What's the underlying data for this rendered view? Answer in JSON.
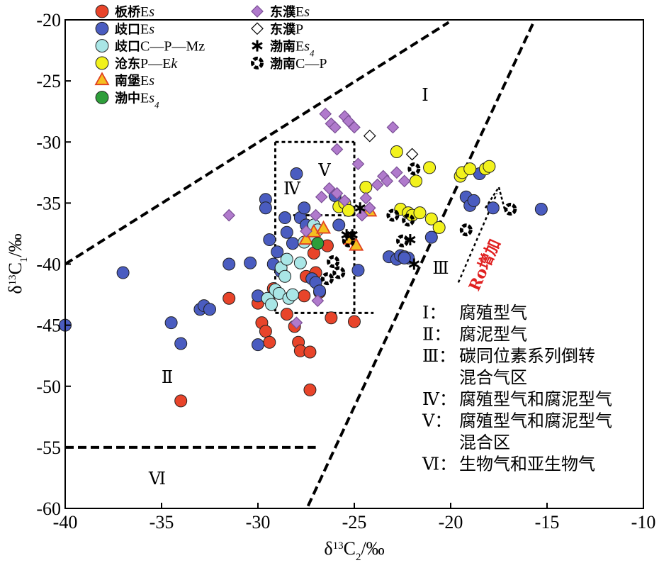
{
  "chart_data": {
    "type": "scatter",
    "xlabel": "δ13C2/‰",
    "ylabel": "δ13C1/‰",
    "xlim": [
      -40,
      -10
    ],
    "ylim": [
      -60,
      -20
    ],
    "x_ticks": [
      "-40",
      "-35",
      "-30",
      "-25",
      "-20",
      "-15",
      "-10"
    ],
    "y_ticks": [
      "-20",
      "-25",
      "-30",
      "-35",
      "-40",
      "-45",
      "-50",
      "-55",
      "-60"
    ],
    "grid": false,
    "legend_position": "top-left",
    "zone_labels": [
      "Ⅰ",
      "Ⅱ",
      "Ⅲ",
      "Ⅳ",
      "Ⅴ",
      "Ⅵ"
    ],
    "annotation_ro": "Ro增加",
    "region_legend": [
      {
        "num": "Ⅰ：",
        "text": "腐殖型气"
      },
      {
        "num": "Ⅱ：",
        "text": "腐泥型气"
      },
      {
        "num": "Ⅲ：",
        "text": "碳同位素系列倒转"
      },
      {
        "num": "",
        "text": "混合气区"
      },
      {
        "num": "Ⅳ：",
        "text": "腐殖型气和腐泥型气"
      },
      {
        "num": "Ⅴ：",
        "text": "腐殖型气和腐泥型气"
      },
      {
        "num": "",
        "text": "混合区"
      },
      {
        "num": "Ⅵ：",
        "text": "生物气和亚生物气"
      }
    ],
    "series": [
      {
        "name": "板桥Es",
        "marker": "circle",
        "color": "#e8442a",
        "x": [
          -31.5,
          -30,
          -29.8,
          -29.6,
          -29.4,
          -29.2,
          -28.5,
          -28.1,
          -27.9,
          -27.8,
          -27.6,
          -27.5,
          -27.3,
          -27.3,
          -27.1,
          -27,
          -26.8,
          -26.4,
          -26.2,
          -25,
          -34
        ],
        "y": [
          -42.8,
          -43.2,
          -44.8,
          -45.5,
          -46.4,
          -42,
          -44.1,
          -45.1,
          -46.4,
          -47.1,
          -42.6,
          -41,
          -50.3,
          -47.2,
          -39.1,
          -40.7,
          -42.3,
          -38.5,
          -44.4,
          -44.7,
          -51.2
        ]
      },
      {
        "name": "歧口Es",
        "marker": "circle",
        "color": "#4a5cc0",
        "x": [
          -40,
          -37,
          -34.5,
          -34,
          -33,
          -32.8,
          -32.5,
          -31.5,
          -30.4,
          -30,
          -30,
          -29.6,
          -29.6,
          -29.4,
          -29.2,
          -29,
          -28.8,
          -28.6,
          -28.5,
          -28.2,
          -28,
          -27.8,
          -27.6,
          -27.5,
          -27.2,
          -27,
          -26.8,
          -26,
          -25.8,
          -25.5,
          -24.8,
          -23.2,
          -22.8,
          -22.6,
          -22.4,
          -22.2,
          -22.4,
          -21,
          -19.2,
          -19,
          -18.8,
          -18.5,
          -17.8,
          -15.3
        ],
        "y": [
          -45,
          -40.7,
          -44.8,
          -46.5,
          -43.7,
          -43.4,
          -43.7,
          -40,
          -39.9,
          -42.6,
          -46.6,
          -34.7,
          -35.4,
          -38,
          -40,
          -39,
          -40.6,
          -36.2,
          -37.4,
          -38.3,
          -32.6,
          -36.2,
          -35.4,
          -36.8,
          -41.2,
          -41.5,
          -42.2,
          -34.4,
          -36.8,
          -35.2,
          -40.5,
          -39.4,
          -39.6,
          -39.3,
          -39.4,
          -39.5,
          -39.5,
          -37.8,
          -34.5,
          -35.2,
          -34.8,
          -32.6,
          -35.4,
          -35.5
        ]
      },
      {
        "name": "歧口C—P—Mz",
        "marker": "circle",
        "color": "#a9e6e6",
        "x": [
          -29.5,
          -29.3,
          -29.1,
          -28.9,
          -28.8,
          -28.6,
          -28.5,
          -28.4,
          -28.2,
          -27.8,
          -27.6,
          -27.3,
          -27.1,
          -26.9
        ],
        "y": [
          -42.8,
          -43.3,
          -42.1,
          -42.4,
          -40.3,
          -41,
          -39.6,
          -42.8,
          -42.5,
          -39.9,
          -38.2,
          -37.8,
          -36.8,
          -37.2
        ]
      },
      {
        "name": "沧东P—Ek",
        "marker": "circle",
        "color": "#f2f21c",
        "x": [
          -25.8,
          -25.5,
          -25.3,
          -24.4,
          -22.8,
          -22.6,
          -22.2,
          -22,
          -21.8,
          -21.6,
          -21.1,
          -21,
          -20.6,
          -19.5,
          -19.4,
          -19,
          -18.2,
          -18
        ],
        "y": [
          -35.3,
          -35,
          -35.6,
          -33.7,
          -30.8,
          -35.5,
          -35.8,
          -36,
          -33.2,
          -35.8,
          -32.1,
          -36.3,
          -37,
          -32.8,
          -32.5,
          -32.2,
          -32.2,
          -32
        ]
      },
      {
        "name": "南堡Es",
        "marker": "triangle",
        "color": "#f5c020",
        "stroke": "#e04020",
        "x": [
          -27.5,
          -27.1,
          -26.6,
          -25.2,
          -24.9,
          -24.2
        ],
        "y": [
          -38,
          -37.4,
          -37.1,
          -38,
          -38.5,
          -35.7
        ]
      },
      {
        "name": "渤中Es4",
        "marker": "circle",
        "color": "#2e9e3a",
        "x": [
          -26.9
        ],
        "y": [
          -38.3
        ]
      },
      {
        "name": "东濮Es",
        "marker": "diamond",
        "color": "#b07acc",
        "x": [
          -26.5,
          -26.2,
          -26,
          -25.9,
          -25.5,
          -25.3,
          -25,
          -24.8,
          -24.2,
          -23.5,
          -23,
          -22.8,
          -26.7,
          -26.3,
          -24.4,
          -27,
          -27.5,
          -23.8,
          -23.3,
          -22.4,
          -31.5,
          -28,
          -26.9,
          -25.9,
          -25.5,
          -24.6
        ],
        "y": [
          -27.7,
          -28.5,
          -28.8,
          -30.6,
          -27.9,
          -28.3,
          -28.8,
          -31.8,
          -35.4,
          -32.8,
          -28.8,
          -32.5,
          -34.5,
          -33.8,
          -34.6,
          -36,
          -37.3,
          -33.5,
          -33.2,
          -33.2,
          -36,
          -44.8,
          -43,
          -34.2,
          -34.8,
          -36
        ]
      },
      {
        "name": "东濮P",
        "marker": "diamond-open",
        "color": "#ffffff",
        "x": [
          -24.2,
          -22
        ],
        "y": [
          -29.5,
          -31
        ]
      },
      {
        "name": "渤南Es4",
        "marker": "asterisk",
        "color": "#000000",
        "x": [
          -25.4,
          -25.1,
          -24.7,
          -22.1,
          -21.9
        ],
        "y": [
          -37.6,
          -37.6,
          -35.4,
          -38,
          -40
        ]
      },
      {
        "name": "渤南C—P",
        "marker": "ring",
        "color": "#000000",
        "x": [
          -26.4,
          -26.1,
          -25.8,
          -25.3,
          -23,
          -22.5,
          -22.2,
          -21.9,
          -19.2,
          -16.9
        ],
        "y": [
          -41.2,
          -39.8,
          -40.7,
          -38.1,
          -36,
          -38.1,
          -36.4,
          -32.2,
          -37.2,
          -35.5
        ]
      }
    ],
    "legend": [
      {
        "label": "板桥",
        "sym": "E",
        "italic": "s",
        "sub": ""
      },
      {
        "label": "歧口",
        "sym": "E",
        "italic": "s",
        "sub": ""
      },
      {
        "label": "歧口",
        "sym": "C—P—Mz",
        "italic": "",
        "sub": ""
      },
      {
        "label": "沧东",
        "sym": "P—E",
        "italic": "k",
        "sub": ""
      },
      {
        "label": "南堡",
        "sym": "E",
        "italic": "s",
        "sub": ""
      },
      {
        "label": "渤中",
        "sym": "E",
        "italic": "s",
        "sub": "4"
      },
      {
        "label": "东濮",
        "sym": "E",
        "italic": "s",
        "sub": ""
      },
      {
        "label": "东濮",
        "sym": "P",
        "italic": "",
        "sub": ""
      },
      {
        "label": "渤南",
        "sym": "E",
        "italic": "s",
        "sub": "4"
      },
      {
        "label": "渤南",
        "sym": "C—P",
        "italic": "",
        "sub": ""
      }
    ]
  }
}
